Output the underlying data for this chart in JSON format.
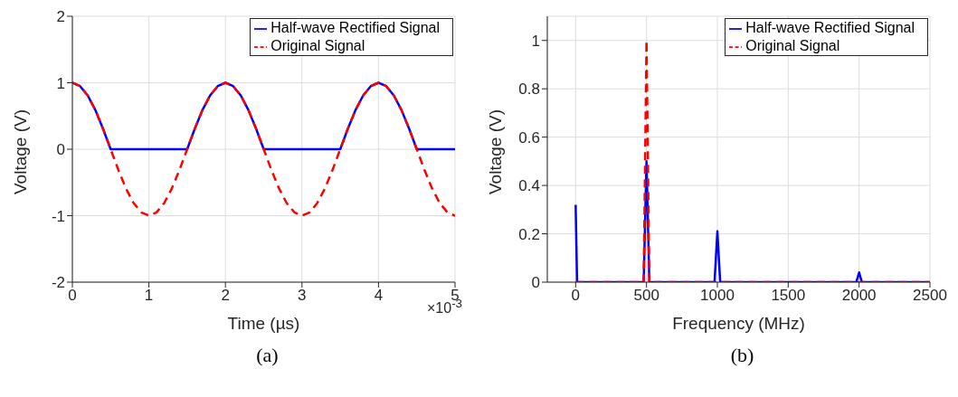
{
  "chart_data": [
    {
      "type": "line",
      "xlabel": "Time (µs)",
      "ylabel": "Voltage (V)",
      "annotations": [
        "×10$^{-3}$",
        "(a)"
      ],
      "x": [
        0,
        0.1,
        0.2,
        0.3,
        0.4,
        0.5,
        0.6,
        0.7,
        0.8,
        0.9,
        1,
        1.1,
        1.2,
        1.3,
        1.4,
        1.5,
        1.6,
        1.7,
        1.8,
        1.9,
        2,
        2.1,
        2.2,
        2.3,
        2.4,
        2.5,
        2.6,
        2.7,
        2.8,
        2.9,
        3,
        3.1,
        3.2,
        3.3,
        3.4,
        3.5,
        3.6,
        3.7,
        3.8,
        3.9,
        4,
        4.1,
        4.2,
        4.3,
        4.4,
        4.5,
        4.6,
        4.7,
        4.8,
        4.9,
        5
      ],
      "series": [
        {
          "name": "Half-wave Rectified Signal",
          "color": "#0000ff",
          "line_style": "solid",
          "values": [
            1,
            0.95,
            0.81,
            0.59,
            0.31,
            0,
            0,
            0,
            0,
            0,
            0,
            0,
            0,
            0,
            0,
            0,
            0.31,
            0.59,
            0.81,
            0.95,
            1,
            0.95,
            0.81,
            0.59,
            0.31,
            0,
            0,
            0,
            0,
            0,
            0,
            0,
            0,
            0,
            0,
            0,
            0.31,
            0.59,
            0.81,
            0.95,
            1,
            0.95,
            0.81,
            0.59,
            0.31,
            0,
            0,
            0,
            0,
            0,
            0
          ]
        },
        {
          "name": "Original Signal",
          "color": "#ff0000",
          "line_style": "dashed",
          "values": [
            1,
            0.95,
            0.81,
            0.59,
            0.31,
            0,
            -0.31,
            -0.59,
            -0.81,
            -0.95,
            -1,
            -0.95,
            -0.81,
            -0.59,
            -0.31,
            0,
            0.31,
            0.59,
            0.81,
            0.95,
            1,
            0.95,
            0.81,
            0.59,
            0.31,
            0,
            -0.31,
            -0.59,
            -0.81,
            -0.95,
            -1,
            -0.95,
            -0.81,
            -0.59,
            -0.31,
            0,
            0.31,
            0.59,
            0.81,
            0.95,
            1,
            0.95,
            0.81,
            0.59,
            0.31,
            0,
            -0.31,
            -0.59,
            -0.81,
            -0.95,
            -1
          ]
        }
      ],
      "xlim": [
        0,
        5
      ],
      "xticks": [
        0,
        1,
        2,
        3,
        4,
        5
      ],
      "ylim": [
        -2,
        2
      ],
      "yticks": [
        -2,
        -1,
        0,
        1,
        2
      ],
      "grid": true,
      "legend": "top right"
    },
    {
      "type": "line",
      "xlabel": "Frequency (MHz)",
      "ylabel": "Voltage (V)",
      "annotations": [
        "(b)"
      ],
      "series": [
        {
          "name": "Half-wave Rectified Signal",
          "color": "#0000ff",
          "line_style": "solid",
          "x": [
            0,
            10,
            480,
            500,
            520,
            980,
            1000,
            1020,
            1980,
            2000,
            2020,
            2500
          ],
          "values": [
            0.32,
            0,
            0,
            0.5,
            0,
            0,
            0.21,
            0,
            0,
            0.04,
            0,
            0
          ]
        },
        {
          "name": "Original Signal",
          "color": "#ff0000",
          "line_style": "dashed",
          "x": [
            0,
            480,
            500,
            520,
            2500
          ],
          "values": [
            0,
            0,
            1,
            0,
            0
          ]
        }
      ],
      "xlim": [
        -200,
        2500
      ],
      "xticks": [
        0,
        500,
        1000,
        1500,
        2000,
        2500
      ],
      "ylim": [
        0,
        1.1
      ],
      "yticks": [
        0,
        0.2,
        0.4,
        0.6,
        0.8,
        1
      ],
      "grid": true,
      "legend": "top right"
    }
  ]
}
